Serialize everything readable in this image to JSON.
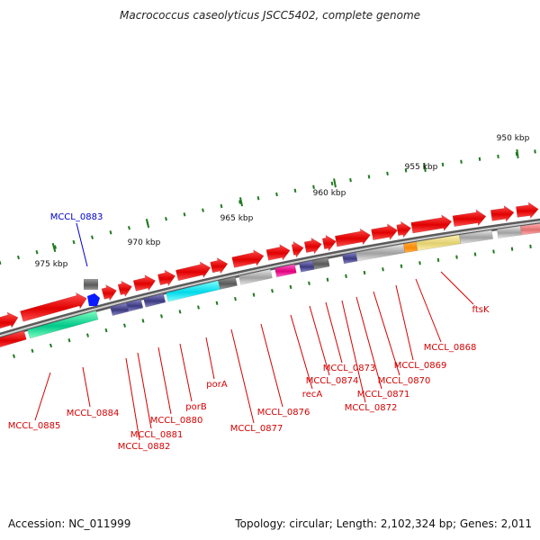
{
  "title": "Macrococcus caseolyticus JSCC5402, complete genome",
  "footer": {
    "accession": "Accession: NC_011999",
    "summary": "Topology: circular; Length: 2,102,324 bp; Genes: 2,011"
  },
  "colors": {
    "backbone": "#7a7a7a",
    "forward_gene": "#ff1a1a",
    "label_red": "#d40000",
    "label_blue": "#0000cc",
    "tick": "#1f7a1f"
  },
  "scale_ticks": [
    {
      "label": "950 kbp",
      "kbp": 950
    },
    {
      "label": "955 kbp",
      "kbp": 955
    },
    {
      "label": "960 kbp",
      "kbp": 960
    },
    {
      "label": "965 kbp",
      "kbp": 965
    },
    {
      "label": "970 kbp",
      "kbp": 970
    },
    {
      "label": "975 kbp",
      "kbp": 975
    }
  ],
  "gene_labels": [
    {
      "name": "MCCL_0883",
      "color": "blue"
    },
    {
      "name": "ftsK",
      "color": "red"
    },
    {
      "name": "MCCL_0868",
      "color": "red"
    },
    {
      "name": "MCCL_0869",
      "color": "red"
    },
    {
      "name": "MCCL_0870",
      "color": "red"
    },
    {
      "name": "MCCL_0871",
      "color": "red"
    },
    {
      "name": "MCCL_0872",
      "color": "red"
    },
    {
      "name": "MCCL_0873",
      "color": "red"
    },
    {
      "name": "MCCL_0874",
      "color": "red"
    },
    {
      "name": "recA",
      "color": "red"
    },
    {
      "name": "MCCL_0876",
      "color": "red"
    },
    {
      "name": "MCCL_0877",
      "color": "red"
    },
    {
      "name": "porA",
      "color": "red"
    },
    {
      "name": "porB",
      "color": "red"
    },
    {
      "name": "MCCL_0880",
      "color": "red"
    },
    {
      "name": "MCCL_0881",
      "color": "red"
    },
    {
      "name": "MCCL_0882",
      "color": "red"
    },
    {
      "name": "MCCL_0884",
      "color": "red"
    },
    {
      "name": "MCCL_0885",
      "color": "red"
    }
  ]
}
